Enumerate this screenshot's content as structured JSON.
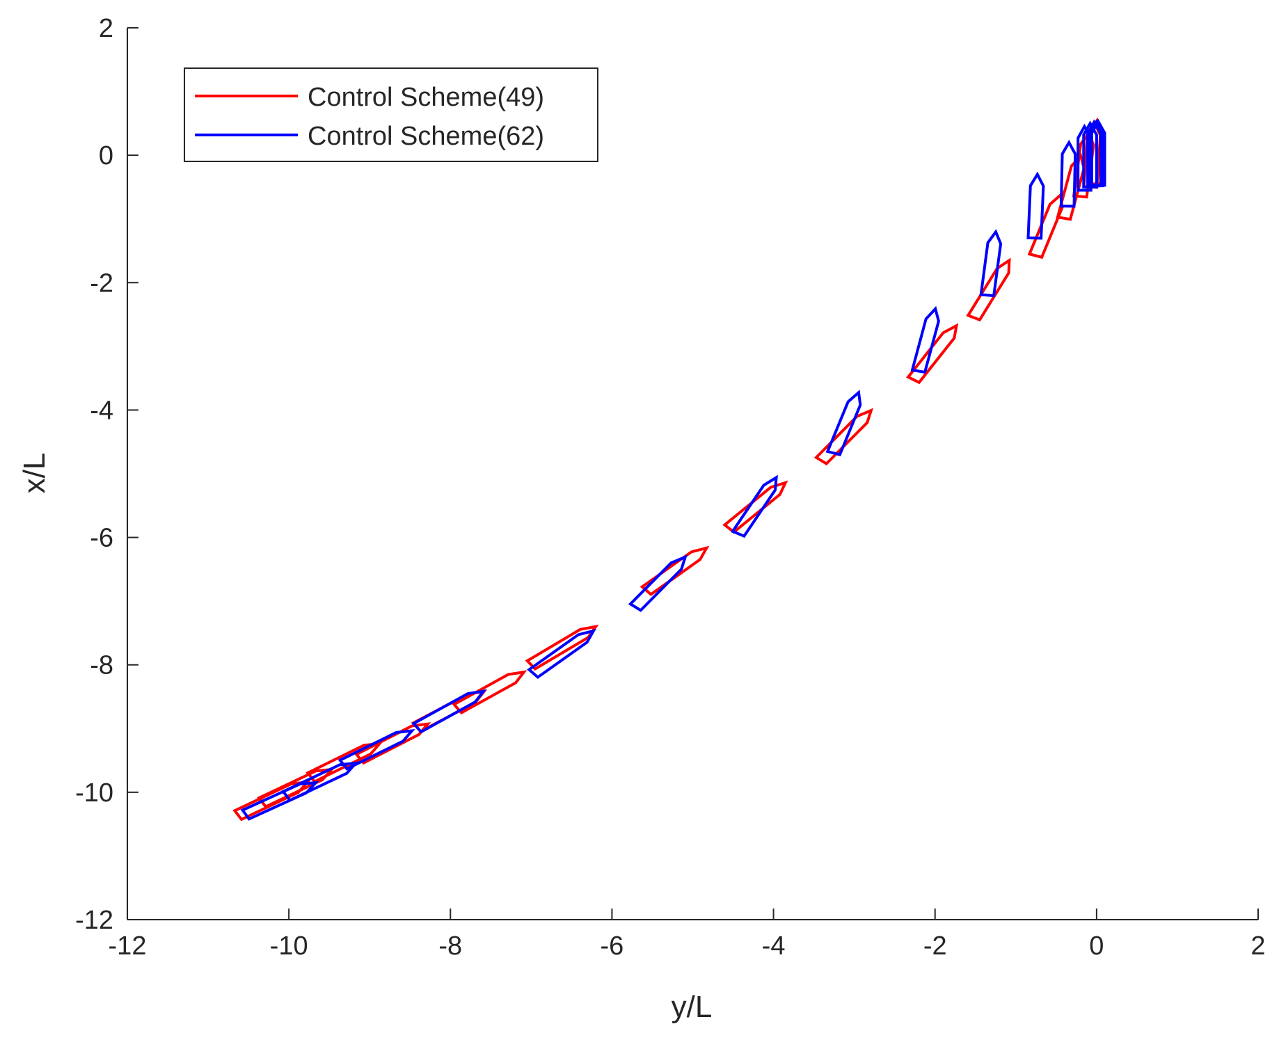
{
  "chart_data": {
    "type": "line",
    "title": "",
    "xlabel": "y/L",
    "ylabel": "x/L",
    "xlim": [
      -12,
      2
    ],
    "ylim": [
      -12,
      2
    ],
    "xticks": [
      "-12",
      "-10",
      "-8",
      "-6",
      "-4",
      "-2",
      "0",
      "2"
    ],
    "yticks": [
      "2",
      "0",
      "-2",
      "-4",
      "-6",
      "-8",
      "-10",
      "-12"
    ],
    "grid": false,
    "legend_position": "top-left",
    "description_units": "each ship outline: center (y, x) in L, heading angle in degrees from +x axis",
    "series": [
      {
        "name": "Control Scheme(49)",
        "color": "#ff0000",
        "ships": [
          {
            "y": -10.2,
            "x": -10.1,
            "heading": 59
          },
          {
            "y": -9.9,
            "x": -9.9,
            "heading": 59
          },
          {
            "y": -9.3,
            "x": -9.5,
            "heading": 58
          },
          {
            "y": -8.7,
            "x": -9.2,
            "heading": 57
          },
          {
            "y": -8.0,
            "x": -8.7,
            "heading": 56
          },
          {
            "y": -7.5,
            "x": -8.4,
            "heading": 55
          },
          {
            "y": -6.6,
            "x": -7.7,
            "heading": 53
          },
          {
            "y": -5.2,
            "x": -6.5,
            "heading": 48
          },
          {
            "y": -4.2,
            "x": -5.5,
            "heading": 44
          },
          {
            "y": -3.1,
            "x": -4.4,
            "heading": 38
          },
          {
            "y": -2.0,
            "x": -3.1,
            "heading": 32
          },
          {
            "y": -1.3,
            "x": -2.1,
            "heading": 26
          },
          {
            "y": -0.6,
            "x": -1.1,
            "heading": 18
          },
          {
            "y": -0.3,
            "x": -0.5,
            "heading": 12
          },
          {
            "y": -0.15,
            "x": -0.15,
            "heading": 6
          },
          {
            "y": -0.05,
            "x": 0.0,
            "heading": 3
          },
          {
            "y": 0.0,
            "x": 0.05,
            "heading": 1
          }
        ]
      },
      {
        "name": "Control Scheme(62)",
        "color": "#0000ff",
        "ships": [
          {
            "y": -10.1,
            "x": -10.1,
            "heading": 60
          },
          {
            "y": -9.6,
            "x": -9.8,
            "heading": 59
          },
          {
            "y": -8.9,
            "x": -9.3,
            "heading": 58
          },
          {
            "y": -8.0,
            "x": -8.7,
            "heading": 55
          },
          {
            "y": -6.6,
            "x": -7.8,
            "heading": 48
          },
          {
            "y": -5.4,
            "x": -6.7,
            "heading": 38
          },
          {
            "y": -4.2,
            "x": -5.5,
            "heading": 28
          },
          {
            "y": -3.1,
            "x": -4.2,
            "heading": 18
          },
          {
            "y": -2.1,
            "x": -2.9,
            "heading": 12
          },
          {
            "y": -1.3,
            "x": -1.7,
            "heading": 6
          },
          {
            "y": -0.75,
            "x": -0.8,
            "heading": 2
          },
          {
            "y": -0.35,
            "x": -0.3,
            "heading": 1
          },
          {
            "y": -0.15,
            "x": -0.05,
            "heading": 0
          },
          {
            "y": -0.08,
            "x": 0.0,
            "heading": 0
          },
          {
            "y": -0.03,
            "x": 0.02,
            "heading": 0
          },
          {
            "y": 0.0,
            "x": 0.02,
            "heading": 0
          },
          {
            "y": 0.02,
            "x": 0.03,
            "heading": 0
          }
        ]
      }
    ]
  }
}
